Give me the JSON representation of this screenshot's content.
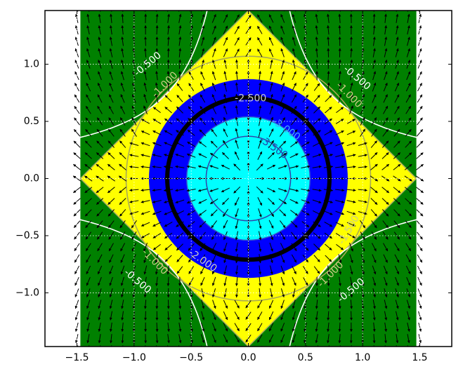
{
  "chart_data": {
    "type": "contour",
    "title": "",
    "xlabel": "",
    "ylabel": "",
    "xlim": [
      -1.78,
      1.78
    ],
    "ylim": [
      -1.47,
      1.47
    ],
    "data_extent": {
      "x": [
        -1.47,
        1.47
      ],
      "y": [
        -1.47,
        1.47
      ]
    },
    "grid": true,
    "x_ticks": [
      {
        "value": -1.5,
        "label": "−1.5"
      },
      {
        "value": -1.0,
        "label": "−1.0"
      },
      {
        "value": -0.5,
        "label": "−0.5"
      },
      {
        "value": 0.0,
        "label": "0.0"
      },
      {
        "value": 0.5,
        "label": "0.5"
      },
      {
        "value": 1.0,
        "label": "1.0"
      },
      {
        "value": 1.5,
        "label": "1.5"
      }
    ],
    "y_ticks": [
      {
        "value": 1.0,
        "label": "1.0"
      },
      {
        "value": 0.5,
        "label": "0.5"
      },
      {
        "value": 0.0,
        "label": "0.0"
      },
      {
        "value": -0.5,
        "label": "−0.5"
      },
      {
        "value": -1.0,
        "label": "−1.0"
      }
    ],
    "filled_regions": [
      {
        "name": "outer",
        "color": "#008000"
      },
      {
        "name": "diamond",
        "radius": 1.47,
        "color": "#ffff00"
      },
      {
        "name": "blue-disc",
        "radius": 0.87,
        "color": "#0000ff"
      },
      {
        "name": "cyan-disc",
        "radius": 0.54,
        "color": "#00ffff"
      }
    ],
    "contour_lines": [
      {
        "level": "-0.500",
        "kind": "hyperbola",
        "k": 0.53,
        "color": "#ffffff",
        "width": 1.6
      },
      {
        "level": "-1.000",
        "kind": "circle",
        "r": 1.07,
        "color": "#aaaa55",
        "width": 1.6
      },
      {
        "level": "-2.500",
        "kind": "circle",
        "r": 0.71,
        "color": "#000000",
        "width": 6
      },
      {
        "level": "-3.000",
        "kind": "circle",
        "r": 0.54,
        "color": "#3355cc",
        "width": 1.5
      },
      {
        "level": "-3.500",
        "kind": "circle",
        "r": 0.37,
        "color": "#3344aa",
        "width": 1.5
      }
    ],
    "contour_labels": [
      {
        "text": "-0.500",
        "x": -0.88,
        "y": 1.0,
        "rotation": -40,
        "color": "#ffffff"
      },
      {
        "text": "-0.500",
        "x": 0.95,
        "y": 0.88,
        "rotation": 40,
        "color": "#ffffff"
      },
      {
        "text": "-0.500",
        "x": -0.97,
        "y": -0.9,
        "rotation": 40,
        "color": "#ffffff"
      },
      {
        "text": "-0.500",
        "x": 0.9,
        "y": -0.98,
        "rotation": -40,
        "color": "#ffffff"
      },
      {
        "text": "-1.000",
        "x": -0.73,
        "y": 0.82,
        "rotation": -45,
        "color": "#cccc88"
      },
      {
        "text": "-1.000",
        "x": 0.88,
        "y": 0.73,
        "rotation": 45,
        "color": "#cccc88"
      },
      {
        "text": "-1.000",
        "x": -0.82,
        "y": -0.73,
        "rotation": 45,
        "color": "#cccc88"
      },
      {
        "text": "-1.500",
        "x": 0.88,
        "y": -0.45,
        "rotation": -60,
        "color": "#cccc88"
      },
      {
        "text": "-1.000",
        "x": 0.72,
        "y": -0.84,
        "rotation": -45,
        "color": "#cccc88"
      },
      {
        "text": "-2.500",
        "x": 0.02,
        "y": 0.7,
        "rotation": 0,
        "color": "#cccccc"
      },
      {
        "text": "-2.000",
        "x": -0.4,
        "y": -0.72,
        "rotation": 35,
        "color": "#cccccc"
      },
      {
        "text": "-3.000",
        "x": 0.33,
        "y": 0.43,
        "rotation": 35,
        "color": "#44aaff"
      },
      {
        "text": "-3.500",
        "x": 0.22,
        "y": 0.27,
        "rotation": 35,
        "color": "#2244aa"
      }
    ],
    "quiver": {
      "grid_step": 0.1,
      "color": "#000000",
      "field": "gradient pointing away from origin"
    }
  }
}
